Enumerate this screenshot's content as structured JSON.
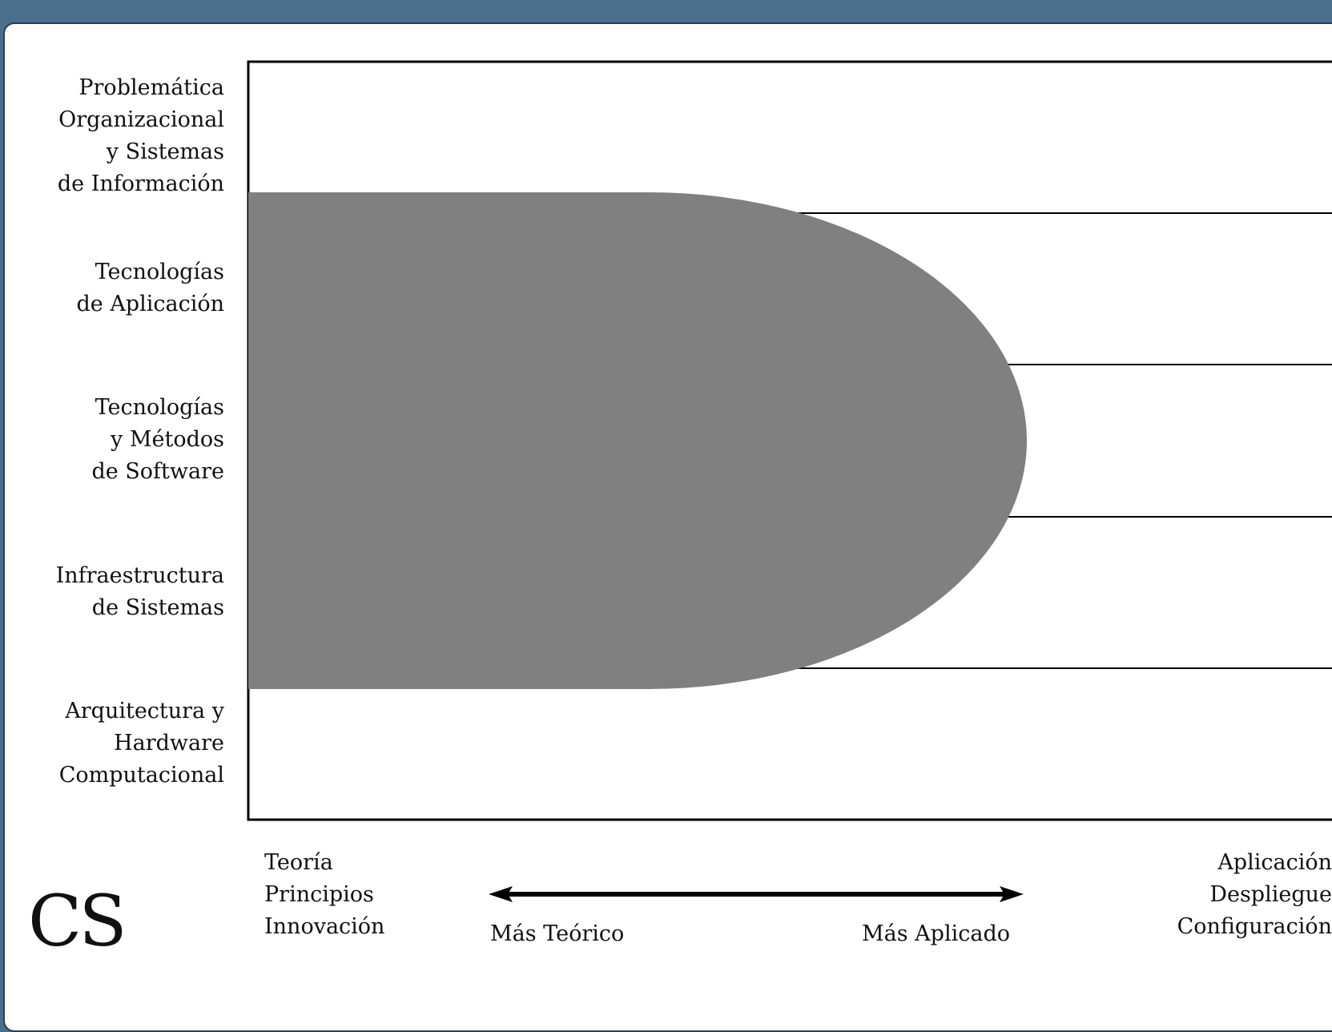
{
  "rows": [
    {
      "lines": [
        "Problemática",
        "Organizacional",
        "y Sistemas",
        "de Información"
      ]
    },
    {
      "lines": [
        "Tecnologías",
        "de Aplicación"
      ]
    },
    {
      "lines": [
        "Tecnologías",
        "y Métodos",
        "de Software"
      ]
    },
    {
      "lines": [
        "Infraestructura",
        "de Sistemas"
      ]
    },
    {
      "lines": [
        "Arquitectura y",
        "Hardware",
        "Computacional"
      ]
    }
  ],
  "axis": {
    "left_lines": [
      "Teoría",
      "Principios",
      "Innovación"
    ],
    "right_lines": [
      "Aplicación",
      "Despliegue",
      "Configuración"
    ],
    "arrow_left_label": "Más Teórico",
    "arrow_right_label": "Más Aplicado"
  },
  "logo": "CS",
  "colors": {
    "background": "#4a6f8c",
    "region_fill": "#808080",
    "grid": "#000000"
  }
}
